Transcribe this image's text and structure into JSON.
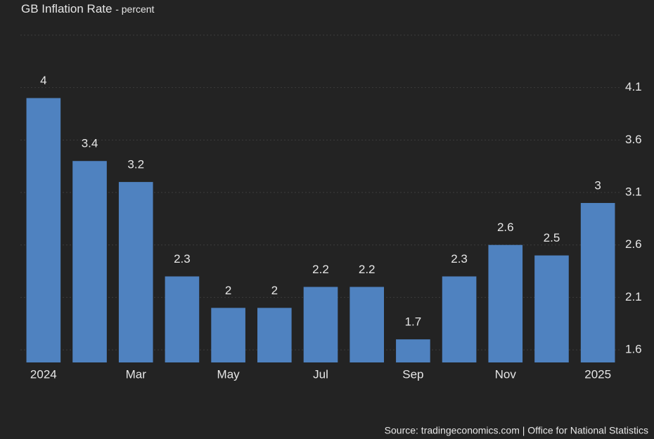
{
  "chart_data": {
    "type": "bar",
    "title": "GB Inflation Rate",
    "subtitle": "- percent",
    "categories": [
      "2024",
      null,
      "Mar",
      null,
      "May",
      null,
      "Jul",
      null,
      "Sep",
      null,
      "Nov",
      null,
      "2025"
    ],
    "values": [
      4,
      3.4,
      3.2,
      2.3,
      2,
      2,
      2.2,
      2.2,
      1.7,
      2.3,
      2.6,
      2.5,
      3
    ],
    "color": "#4f82c0",
    "ylim": [
      1.48,
      4.6
    ],
    "yticks": [
      1.6,
      2.1,
      2.6,
      3.1,
      3.6,
      4.1
    ],
    "grid": true,
    "source": "Source: tradingeconomics.com | Office for National Statistics"
  }
}
